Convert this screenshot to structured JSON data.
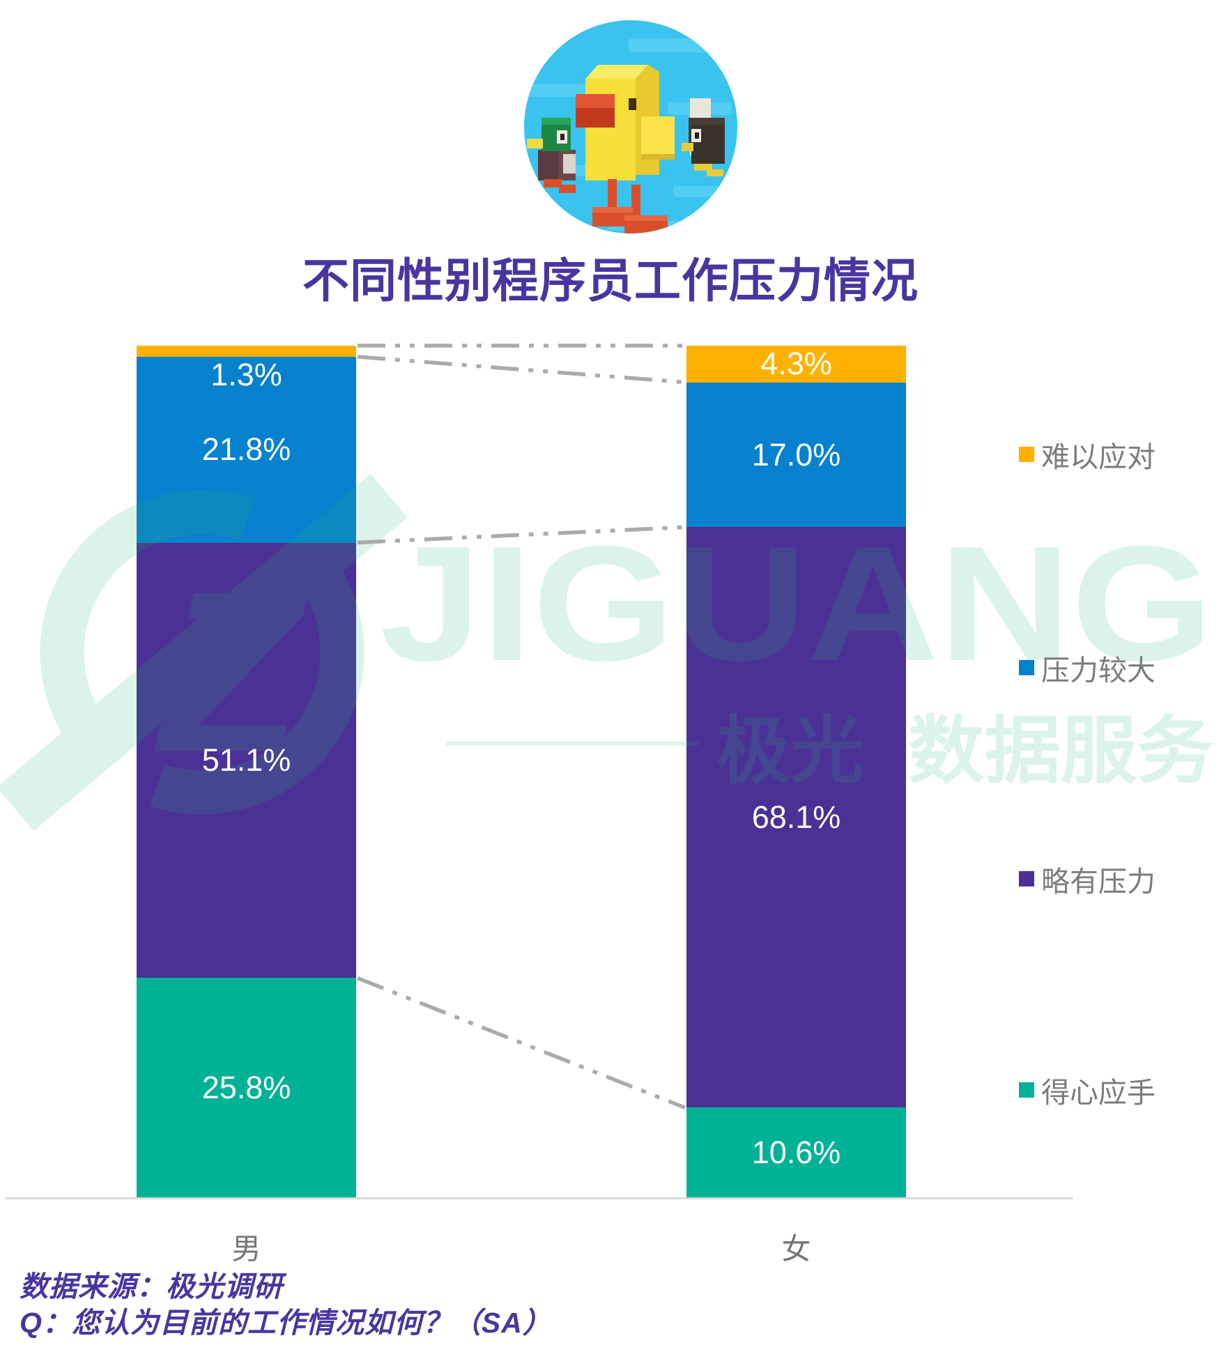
{
  "header": {
    "title": "不同性别程序员工作压力情况",
    "title_color": "#4a35a0"
  },
  "logo": {
    "name": "crossy-road-ducks-logo",
    "background_color": "#3ac3ee"
  },
  "chart_data": {
    "type": "bar",
    "stacked": true,
    "orientation": "vertical",
    "categories": [
      "男",
      "女"
    ],
    "series": [
      {
        "name": "难以应对",
        "color": "#ffb100",
        "values": [
          1.3,
          4.3
        ]
      },
      {
        "name": "压力较大",
        "color": "#0681ce",
        "values": [
          21.8,
          17.0
        ]
      },
      {
        "name": "略有压力",
        "color": "#4b3096",
        "values": [
          51.1,
          68.1
        ]
      },
      {
        "name": "得心应手",
        "color": "#00b295",
        "values": [
          25.8,
          10.6
        ]
      }
    ],
    "value_label_suffix": "%",
    "ylim": [
      0,
      100
    ],
    "grid": false,
    "legend_position": "right",
    "category_label_color": "#757575",
    "connector_line_color": "#ababab",
    "axis_line_color": "#d9d9d9"
  },
  "watermark": {
    "latin": "JIGUANG",
    "cn_left": "极光",
    "cn_right": "数据服务",
    "color": "#2eb878"
  },
  "footer": {
    "source_line": "数据来源：极光调研",
    "question_line": "Q：您认为目前的工作情况如何？（SA）"
  }
}
